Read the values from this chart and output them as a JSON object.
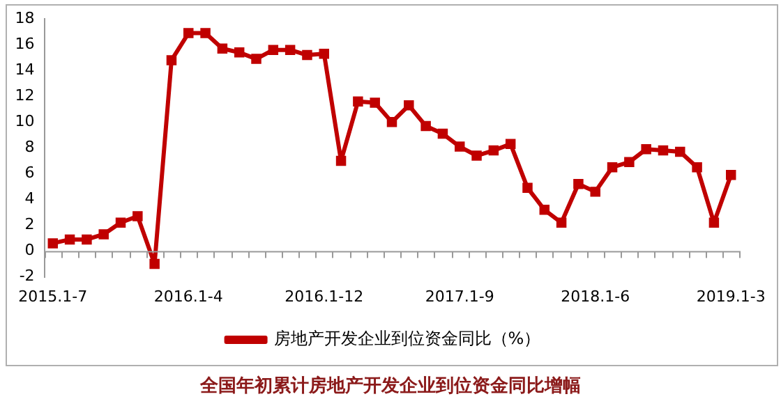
{
  "chart_data": {
    "type": "line",
    "title": "全国年初累计房地产开发企业到位资金同比增幅",
    "categories": [
      "2015.1-7",
      null,
      null,
      null,
      null,
      null,
      null,
      null,
      "2016.1-4",
      null,
      null,
      null,
      null,
      null,
      null,
      null,
      "2016.1-12",
      null,
      null,
      null,
      null,
      null,
      null,
      null,
      "2017.1-9",
      null,
      null,
      null,
      null,
      null,
      null,
      null,
      "2018.1-6",
      null,
      null,
      null,
      null,
      null,
      null,
      null,
      "2019.1-3"
    ],
    "series": [
      {
        "name": "房地产开发企业到位资金同比（%）",
        "color": "#c00000",
        "values": [
          0.6,
          0.9,
          0.9,
          1.3,
          2.2,
          2.7,
          -1.0,
          14.8,
          16.9,
          16.9,
          15.7,
          15.4,
          14.9,
          15.6,
          15.6,
          15.2,
          15.3,
          7.0,
          11.6,
          11.5,
          10.0,
          11.3,
          9.7,
          9.1,
          8.1,
          7.4,
          7.8,
          8.3,
          4.9,
          3.2,
          2.2,
          5.2,
          4.6,
          6.5,
          6.9,
          7.9,
          7.8,
          7.7,
          6.5,
          2.2,
          5.9
        ]
      }
    ],
    "ylim": [
      -2,
      18
    ],
    "yticks": [
      -2,
      0,
      2,
      4,
      6,
      8,
      10,
      12,
      14,
      16,
      18
    ],
    "grid": false,
    "legend": "bottom",
    "marker": "square",
    "line_style": "solid"
  }
}
